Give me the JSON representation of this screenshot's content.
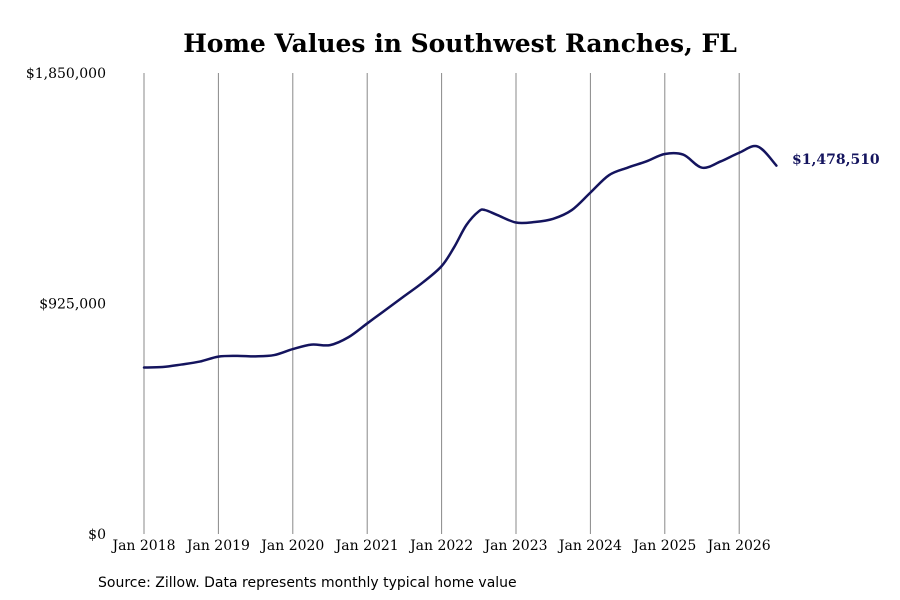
{
  "chart_data": {
    "type": "line",
    "title": "Home Values in Southwest Ranches, FL",
    "source": "Source: Zillow. Data represents monthly typical home value",
    "ylim": [
      0,
      1850000
    ],
    "y_ticks": [
      {
        "value": 0,
        "label": "$0"
      },
      {
        "value": 925000,
        "label": "$925,000"
      },
      {
        "value": 1850000,
        "label": "$1,850,000"
      }
    ],
    "x_ticks": [
      {
        "value": "2018-01",
        "label": "Jan 2018"
      },
      {
        "value": "2019-01",
        "label": "Jan 2019"
      },
      {
        "value": "2020-01",
        "label": "Jan 2020"
      },
      {
        "value": "2021-01",
        "label": "Jan 2021"
      },
      {
        "value": "2022-01",
        "label": "Jan 2022"
      },
      {
        "value": "2023-01",
        "label": "Jan 2023"
      },
      {
        "value": "2024-01",
        "label": "Jan 2024"
      },
      {
        "value": "2025-01",
        "label": "Jan 2025"
      },
      {
        "value": "2026-01",
        "label": "Jan 2026"
      }
    ],
    "grid": "vertical",
    "line_color": "#14145e",
    "end_label": "$1,478,510",
    "series": [
      {
        "x": [
          "2018-01",
          "2018-04",
          "2018-07",
          "2018-10",
          "2019-01",
          "2019-04",
          "2019-07",
          "2019-10",
          "2020-01",
          "2020-04",
          "2020-07",
          "2020-10",
          "2021-01",
          "2021-04",
          "2021-07",
          "2021-10",
          "2022-01",
          "2022-03",
          "2022-05",
          "2022-07",
          "2022-08",
          "2022-10",
          "2023-01",
          "2023-04",
          "2023-07",
          "2023-10",
          "2024-01",
          "2024-04",
          "2024-07",
          "2024-10",
          "2025-01",
          "2025-04",
          "2025-07",
          "2025-10",
          "2026-01",
          "2026-04",
          "2026-07"
        ],
        "values": [
          668000,
          670000,
          680000,
          692000,
          712000,
          715000,
          713000,
          718000,
          742000,
          760000,
          758000,
          790000,
          845000,
          900000,
          955000,
          1010000,
          1075000,
          1150000,
          1240000,
          1295000,
          1300000,
          1280000,
          1250000,
          1252000,
          1265000,
          1300000,
          1370000,
          1440000,
          1470000,
          1495000,
          1525000,
          1522000,
          1470000,
          1495000,
          1530000,
          1555000,
          1478510
        ]
      }
    ]
  }
}
